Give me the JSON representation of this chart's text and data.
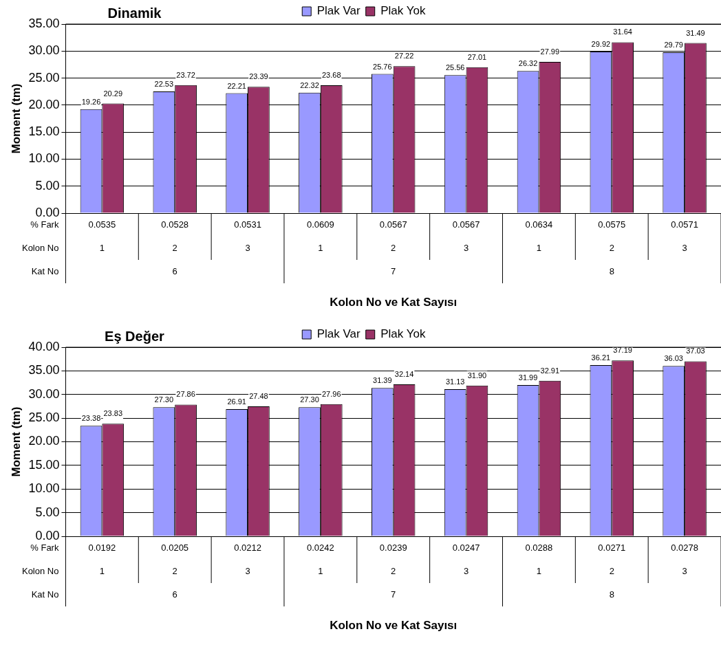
{
  "chart_data": [
    {
      "type": "bar",
      "title": "Dinamik",
      "ylabel": "Moment (tm)",
      "xlabel": "Kolon No ve Kat Sayısı",
      "categories": [
        "0.0535",
        "0.0528",
        "0.0531",
        "0.0609",
        "0.0567",
        "0.0567",
        "0.0634",
        "0.0575",
        "0.0571"
      ],
      "series": [
        {
          "name": "Plak Var",
          "color": "#9999ff",
          "values": [
            19.26,
            22.53,
            22.21,
            22.32,
            25.76,
            25.56,
            26.32,
            29.92,
            29.79
          ],
          "value_labels": [
            "19.26",
            "22.53",
            "22.21",
            "22.32",
            "25.76",
            "25.56",
            "26.32",
            "29.92",
            "29.79"
          ]
        },
        {
          "name": "Plak Yok",
          "color": "#993366",
          "values": [
            20.29,
            23.72,
            23.39,
            23.68,
            27.22,
            27.01,
            27.99,
            31.64,
            31.49
          ],
          "value_labels": [
            "20.29",
            "23.72",
            "23.39",
            "23.68",
            "27.22",
            "27.01",
            "27.99",
            "31.64",
            "31.49"
          ]
        }
      ],
      "ylim": [
        0,
        35
      ],
      "yticks": [
        {
          "value": 0,
          "label": "0.00"
        },
        {
          "value": 5,
          "label": "5.00"
        },
        {
          "value": 10,
          "label": "10.00"
        },
        {
          "value": 15,
          "label": "15.00"
        },
        {
          "value": 20,
          "label": "20.00"
        },
        {
          "value": 25,
          "label": "25.00"
        },
        {
          "value": 30,
          "label": "30.00"
        },
        {
          "value": 35,
          "label": "35.00"
        }
      ],
      "annotations": [
        "% Fark",
        "Kolon No",
        "1",
        "2",
        "3",
        "1",
        "2",
        "3",
        "1",
        "2",
        "3",
        "Kat No",
        "6",
        "7",
        "8"
      ],
      "grid": "y",
      "legend": "top"
    },
    {
      "type": "bar",
      "title": "Eş Değer",
      "ylabel": "Moment (tm)",
      "xlabel": "Kolon No ve Kat Sayısı",
      "categories": [
        "0.0192",
        "0.0205",
        "0.0212",
        "0.0242",
        "0.0239",
        "0.0247",
        "0.0288",
        "0.0271",
        "0.0278"
      ],
      "series": [
        {
          "name": "Plak Var",
          "color": "#9999ff",
          "values": [
            23.38,
            27.3,
            26.91,
            27.3,
            31.39,
            31.13,
            31.99,
            36.21,
            36.03
          ],
          "value_labels": [
            "23.38",
            "27.30",
            "26.91",
            "27.30",
            "31.39",
            "31.13",
            "31.99",
            "36.21",
            "36.03"
          ]
        },
        {
          "name": "Plak Yok",
          "color": "#993366",
          "values": [
            23.83,
            27.86,
            27.48,
            27.96,
            32.14,
            31.9,
            32.91,
            37.19,
            37.03
          ],
          "value_labels": [
            "23.83",
            "27.86",
            "27.48",
            "27.96",
            "32.14",
            "31.90",
            "32.91",
            "37.19",
            "37.03"
          ]
        }
      ],
      "ylim": [
        0,
        40
      ],
      "yticks": [
        {
          "value": 0,
          "label": "0.00"
        },
        {
          "value": 5,
          "label": "5.00"
        },
        {
          "value": 10,
          "label": "10.00"
        },
        {
          "value": 15,
          "label": "15.00"
        },
        {
          "value": 20,
          "label": "20.00"
        },
        {
          "value": 25,
          "label": "25.00"
        },
        {
          "value": 30,
          "label": "30.00"
        },
        {
          "value": 35,
          "label": "35.00"
        },
        {
          "value": 40,
          "label": "40.00"
        }
      ],
      "annotations": [
        "% Fark",
        "Kolon No",
        "1",
        "2",
        "3",
        "1",
        "2",
        "3",
        "1",
        "2",
        "3",
        "Kat No",
        "6",
        "7",
        "8"
      ],
      "grid": "y",
      "legend": "top"
    }
  ]
}
